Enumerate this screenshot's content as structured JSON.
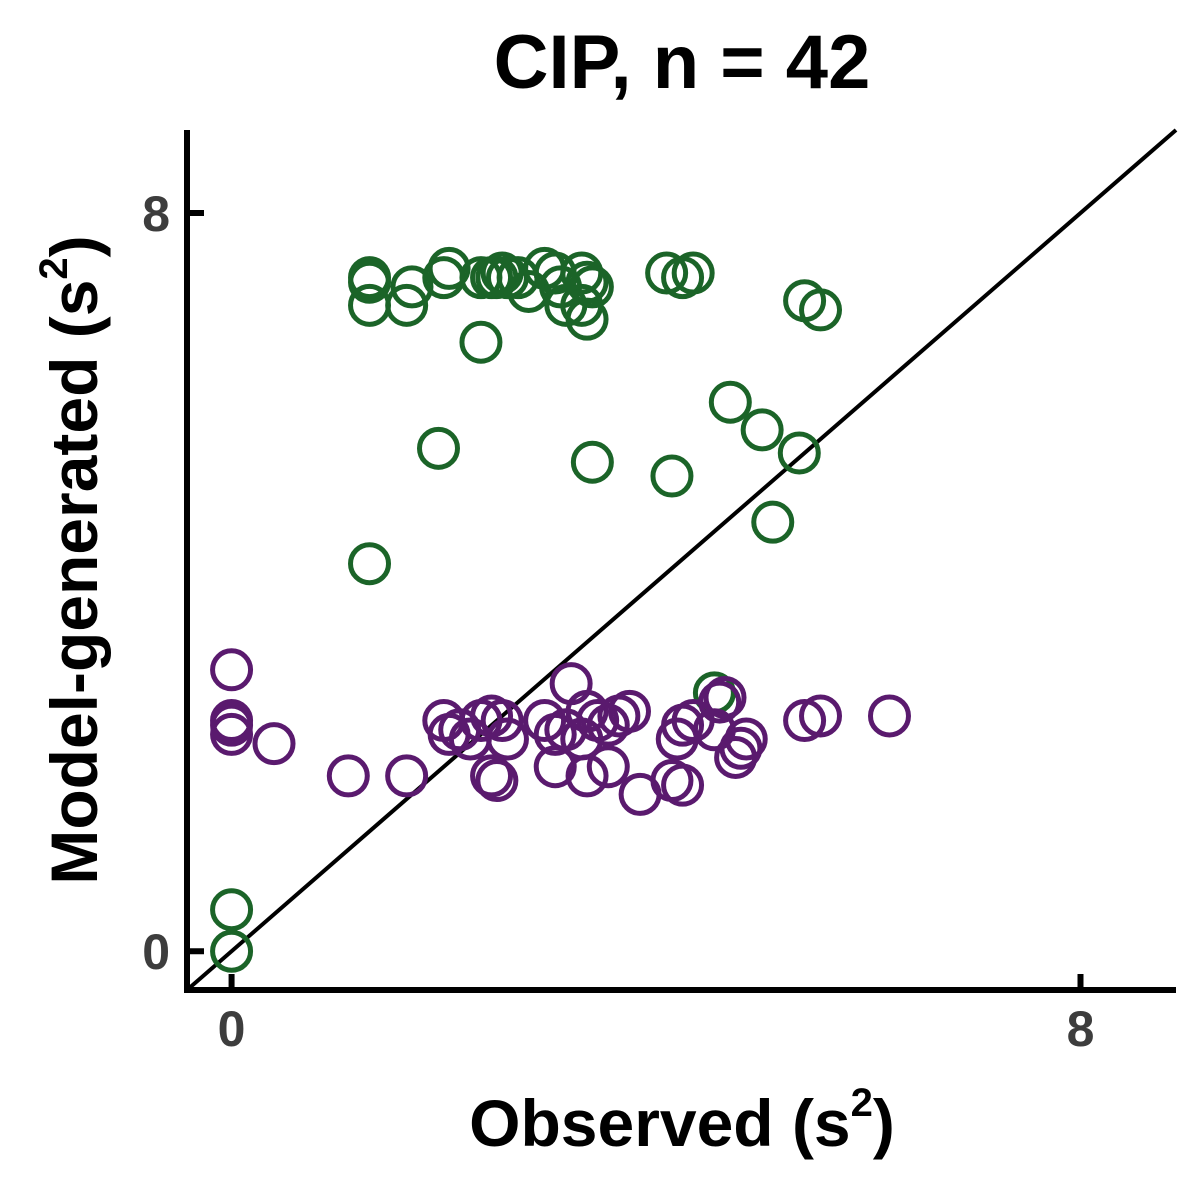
{
  "chart_data": {
    "type": "scatter",
    "title": "CIP, n = 42",
    "xlabel": "Observed (s",
    "xlabel_sup": "2",
    "xlabel_close": ")",
    "ylabel": "Model-generated (s",
    "ylabel_sup": "2",
    "ylabel_close": ")",
    "xlim": [
      -0.42,
      8.9
    ],
    "ylim": [
      -0.42,
      8.9
    ],
    "x_ticks": [
      {
        "value": 0,
        "label": "0"
      },
      {
        "value": 8,
        "label": "8"
      }
    ],
    "y_ticks": [
      {
        "value": 0,
        "label": "0"
      },
      {
        "value": 8,
        "label": "8"
      }
    ],
    "grid": false,
    "identity_line": true,
    "legend": "none",
    "series": [
      {
        "color": "#1b6428",
        "points": [
          [
            1.3,
            7.3
          ],
          [
            1.3,
            7.25
          ],
          [
            1.3,
            7.0
          ],
          [
            1.7,
            7.2
          ],
          [
            1.65,
            7.0
          ],
          [
            2.0,
            7.3
          ],
          [
            2.05,
            7.4
          ],
          [
            2.35,
            7.3
          ],
          [
            2.45,
            7.3
          ],
          [
            2.5,
            7.3
          ],
          [
            2.55,
            7.35
          ],
          [
            2.6,
            7.3
          ],
          [
            2.7,
            7.3
          ],
          [
            2.8,
            7.15
          ],
          [
            2.95,
            7.4
          ],
          [
            3.05,
            7.35
          ],
          [
            3.1,
            7.2
          ],
          [
            3.15,
            7.0
          ],
          [
            3.3,
            7.35
          ],
          [
            3.35,
            7.25
          ],
          [
            3.4,
            7.2
          ],
          [
            3.3,
            7.0
          ],
          [
            3.35,
            6.85
          ],
          [
            4.1,
            7.35
          ],
          [
            4.25,
            7.3
          ],
          [
            4.35,
            7.35
          ],
          [
            5.4,
            7.05
          ],
          [
            5.55,
            6.95
          ],
          [
            2.35,
            6.6
          ],
          [
            4.7,
            5.95
          ],
          [
            5.0,
            5.65
          ],
          [
            5.35,
            5.4
          ],
          [
            1.95,
            5.45
          ],
          [
            3.4,
            5.3
          ],
          [
            4.15,
            5.15
          ],
          [
            5.1,
            4.65
          ],
          [
            1.3,
            4.2
          ],
          [
            4.55,
            2.8
          ],
          [
            0.0,
            0.45
          ],
          [
            0.0,
            0.0
          ]
        ]
      },
      {
        "color": "#5a1a6e",
        "points": [
          [
            0.0,
            3.05
          ],
          [
            0.0,
            2.5
          ],
          [
            0.0,
            2.45
          ],
          [
            0.0,
            2.35
          ],
          [
            0.4,
            2.25
          ],
          [
            1.1,
            1.9
          ],
          [
            1.65,
            1.9
          ],
          [
            2.0,
            2.5
          ],
          [
            2.05,
            2.35
          ],
          [
            2.15,
            2.4
          ],
          [
            2.25,
            2.3
          ],
          [
            2.35,
            2.5
          ],
          [
            2.45,
            2.55
          ],
          [
            2.55,
            2.5
          ],
          [
            2.45,
            1.9
          ],
          [
            2.5,
            1.85
          ],
          [
            2.6,
            2.3
          ],
          [
            2.95,
            2.5
          ],
          [
            3.05,
            2.35
          ],
          [
            3.15,
            2.4
          ],
          [
            3.05,
            2.0
          ],
          [
            3.2,
            2.9
          ],
          [
            3.3,
            2.3
          ],
          [
            3.35,
            2.6
          ],
          [
            3.45,
            2.5
          ],
          [
            3.55,
            2.45
          ],
          [
            3.65,
            2.55
          ],
          [
            3.75,
            2.6
          ],
          [
            3.35,
            1.9
          ],
          [
            3.55,
            2.0
          ],
          [
            3.85,
            1.7
          ],
          [
            4.15,
            1.85
          ],
          [
            4.25,
            1.8
          ],
          [
            4.2,
            2.3
          ],
          [
            4.25,
            2.45
          ],
          [
            4.35,
            2.5
          ],
          [
            4.6,
            2.7
          ],
          [
            4.55,
            2.4
          ],
          [
            4.65,
            2.75
          ],
          [
            4.75,
            2.1
          ],
          [
            4.8,
            2.2
          ],
          [
            4.85,
            2.3
          ],
          [
            5.4,
            2.5
          ],
          [
            5.55,
            2.55
          ],
          [
            6.2,
            2.55
          ]
        ]
      }
    ]
  }
}
